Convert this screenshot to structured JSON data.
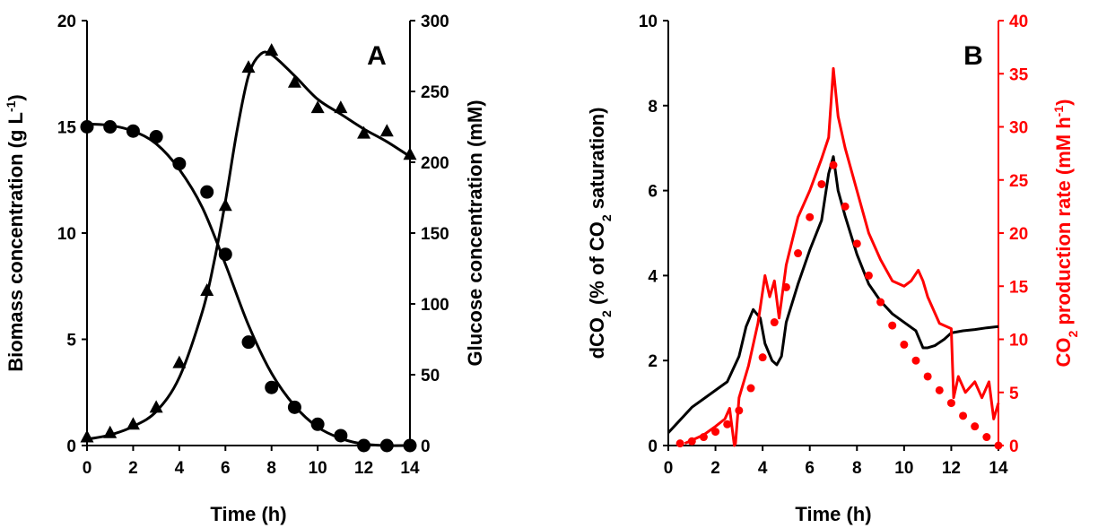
{
  "chart_data": [
    {
      "panel": "A",
      "type": "line",
      "xlabel": "Time (h)",
      "ylabel_left": {
        "main": "Biomass concentration (g L",
        "sup": "-1",
        "tail": ")"
      },
      "ylabel_right": "Glucose concentration (mM)",
      "xlim": [
        0,
        14
      ],
      "ylim_left": [
        0,
        20
      ],
      "ylim_right": [
        0,
        300
      ],
      "xticks": [
        "0",
        "2",
        "4",
        "6",
        "8",
        "10",
        "12",
        "14"
      ],
      "yticks_left": [
        "0",
        "5",
        "10",
        "15",
        "20"
      ],
      "yticks_right": [
        "0",
        "50",
        "100",
        "150",
        "200",
        "250",
        "300"
      ],
      "grid": false,
      "series": [
        {
          "marker": "triangle",
          "axis": "left",
          "color": "#000000",
          "x": [
            0,
            1,
            2,
            3,
            4,
            5.2,
            6,
            7,
            8,
            9,
            10,
            11,
            12,
            13,
            14
          ],
          "y": [
            0.4,
            0.6,
            1.0,
            1.8,
            3.9,
            7.3,
            11.3,
            17.8,
            18.6,
            17.1,
            15.9,
            15.9,
            14.7,
            14.8,
            13.7
          ]
        },
        {
          "marker": "circle",
          "axis": "right",
          "color": "#000000",
          "x": [
            0,
            1,
            2,
            3,
            4,
            5.2,
            6,
            7,
            8,
            9,
            10,
            11,
            12,
            13,
            14
          ],
          "y": [
            225,
            225,
            222,
            218,
            199,
            179,
            135,
            73,
            41,
            27,
            15,
            7,
            0,
            0,
            0
          ]
        },
        {
          "style": "fit-line",
          "axis": "left",
          "color": "#000000",
          "x": [
            0,
            1,
            2,
            3,
            4,
            5,
            5.5,
            6,
            6.5,
            7,
            7.5,
            8,
            9,
            10,
            11,
            12,
            13,
            14
          ],
          "y": [
            0.3,
            0.5,
            0.9,
            1.6,
            3.2,
            6.3,
            8.6,
            11.5,
            14.8,
            17.4,
            18.4,
            18.4,
            17.4,
            16.3,
            15.6,
            14.9,
            14.3,
            13.6
          ]
        },
        {
          "style": "fit-line",
          "axis": "right",
          "color": "#000000",
          "x": [
            0,
            1,
            2,
            3,
            4,
            5,
            6,
            7,
            8,
            9,
            10,
            11,
            12,
            13,
            14
          ],
          "y": [
            227,
            226,
            222,
            213,
            195,
            168,
            128,
            85,
            51,
            28,
            13,
            5,
            1,
            0,
            0
          ]
        }
      ],
      "annotation": "A"
    },
    {
      "panel": "B",
      "type": "line",
      "xlabel": "Time (h)",
      "ylabel_left": {
        "pre": "dCO",
        "sub": "2",
        "mid": " (% of CO",
        "sub2": "2",
        "tail": " saturation)"
      },
      "ylabel_right": {
        "pre": "CO",
        "sub": "2",
        "mid": " production rate (mM h",
        "sup": "-1",
        "tail": ")"
      },
      "xlim": [
        0,
        14
      ],
      "ylim_left": [
        0,
        10
      ],
      "ylim_right": [
        0,
        40
      ],
      "xticks": [
        "0",
        "2",
        "4",
        "6",
        "8",
        "10",
        "12",
        "14"
      ],
      "yticks_left": [
        "0",
        "2",
        "4",
        "6",
        "8",
        "10"
      ],
      "yticks_right": [
        "0",
        "5",
        "10",
        "15",
        "20",
        "25",
        "30",
        "35",
        "40"
      ],
      "grid": false,
      "colors": {
        "left_axis": "#000000",
        "right_axis": "#ff0000"
      },
      "series": [
        {
          "style": "solid",
          "axis": "left",
          "color": "#000000",
          "x": [
            0,
            0.5,
            1,
            1.5,
            2,
            2.5,
            3,
            3.3,
            3.6,
            3.9,
            4.1,
            4.4,
            4.6,
            4.8,
            5,
            5.5,
            6,
            6.5,
            6.8,
            7,
            7.2,
            7.5,
            8,
            8.5,
            9,
            9.5,
            10,
            10.5,
            10.8,
            11,
            11.3,
            11.7,
            12,
            12.5,
            13,
            13.5,
            14
          ],
          "y": [
            0.3,
            0.6,
            0.9,
            1.1,
            1.3,
            1.5,
            2.1,
            2.8,
            3.2,
            3.0,
            2.4,
            2.0,
            1.9,
            2.1,
            2.9,
            3.8,
            4.6,
            5.3,
            6.4,
            6.8,
            6.0,
            5.4,
            4.5,
            3.8,
            3.4,
            3.1,
            2.9,
            2.7,
            2.3,
            2.3,
            2.35,
            2.5,
            2.65,
            2.7,
            2.73,
            2.77,
            2.8
          ]
        },
        {
          "style": "solid",
          "axis": "right",
          "color": "#ff0000",
          "x": [
            0.7,
            1,
            1.5,
            2,
            2.4,
            2.6,
            2.8,
            2.85,
            3,
            3.4,
            3.8,
            4.1,
            4.3,
            4.5,
            4.7,
            5,
            5.5,
            6,
            6.5,
            6.8,
            7,
            7.2,
            7.5,
            8,
            8.5,
            9,
            9.5,
            10,
            10.3,
            10.6,
            10.8,
            11,
            11.5,
            12,
            12.1,
            12.3,
            12.6,
            13,
            13.3,
            13.6,
            13.8,
            14
          ],
          "y": [
            0.2,
            0.5,
            1.0,
            1.8,
            2.5,
            3.5,
            0,
            0.2,
            4.5,
            7.5,
            11.5,
            16,
            14,
            15.5,
            12,
            17,
            21.5,
            24,
            27,
            29,
            35.5,
            31,
            28,
            24,
            20,
            17.5,
            15.5,
            15,
            15.5,
            16.5,
            15.5,
            14,
            11.5,
            11,
            4.5,
            6.5,
            5,
            6,
            4.5,
            6,
            2.5,
            4
          ]
        },
        {
          "style": "dotted",
          "axis": "right",
          "color": "#ff0000",
          "x": [
            0.5,
            1,
            1.5,
            2,
            2.5,
            3,
            3.5,
            4,
            4.5,
            5,
            5.5,
            6,
            6.5,
            7,
            7.5,
            8,
            8.5,
            9,
            9.5,
            10,
            10.5,
            11,
            11.5,
            12,
            12.5,
            13,
            13.5,
            14
          ],
          "y": [
            0.2,
            0.4,
            0.8,
            1.3,
            2.0,
            3.3,
            5.4,
            8.3,
            11.6,
            14.9,
            18.1,
            21.5,
            24.6,
            26.4,
            22.5,
            19.0,
            16.0,
            13.5,
            11.3,
            9.5,
            8.0,
            6.5,
            5.2,
            4.0,
            2.8,
            1.8,
            0.8,
            0
          ]
        }
      ],
      "annotation": "B"
    }
  ]
}
